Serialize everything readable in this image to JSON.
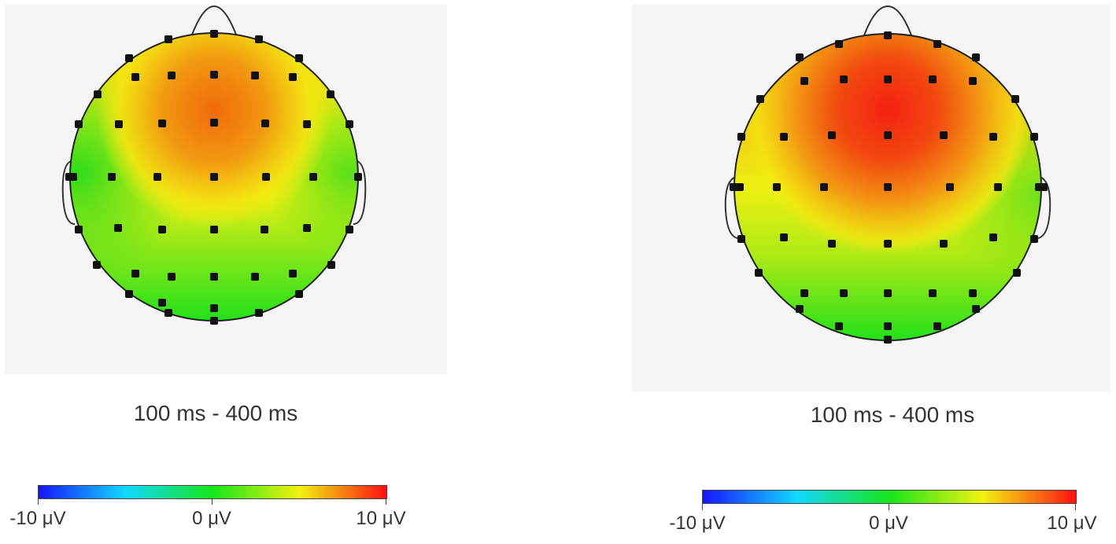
{
  "figure": {
    "panels": [
      {
        "id": "left",
        "time_window": "100 ms - 400 ms",
        "scale": {
          "min_label": "-10 μV",
          "mid_label": "0 μV",
          "max_label": "10 μV"
        }
      },
      {
        "id": "right",
        "time_window": "100 ms - 400 ms",
        "scale": {
          "min_label": "-10 μV",
          "mid_label": "0 μV",
          "max_label": "10 μV"
        }
      }
    ]
  },
  "colors": {
    "negative": "#1515ff",
    "neutral": "#16e61a",
    "positive": "#ff1010",
    "electrode": "#111111",
    "background": "#f5f5f5"
  }
}
